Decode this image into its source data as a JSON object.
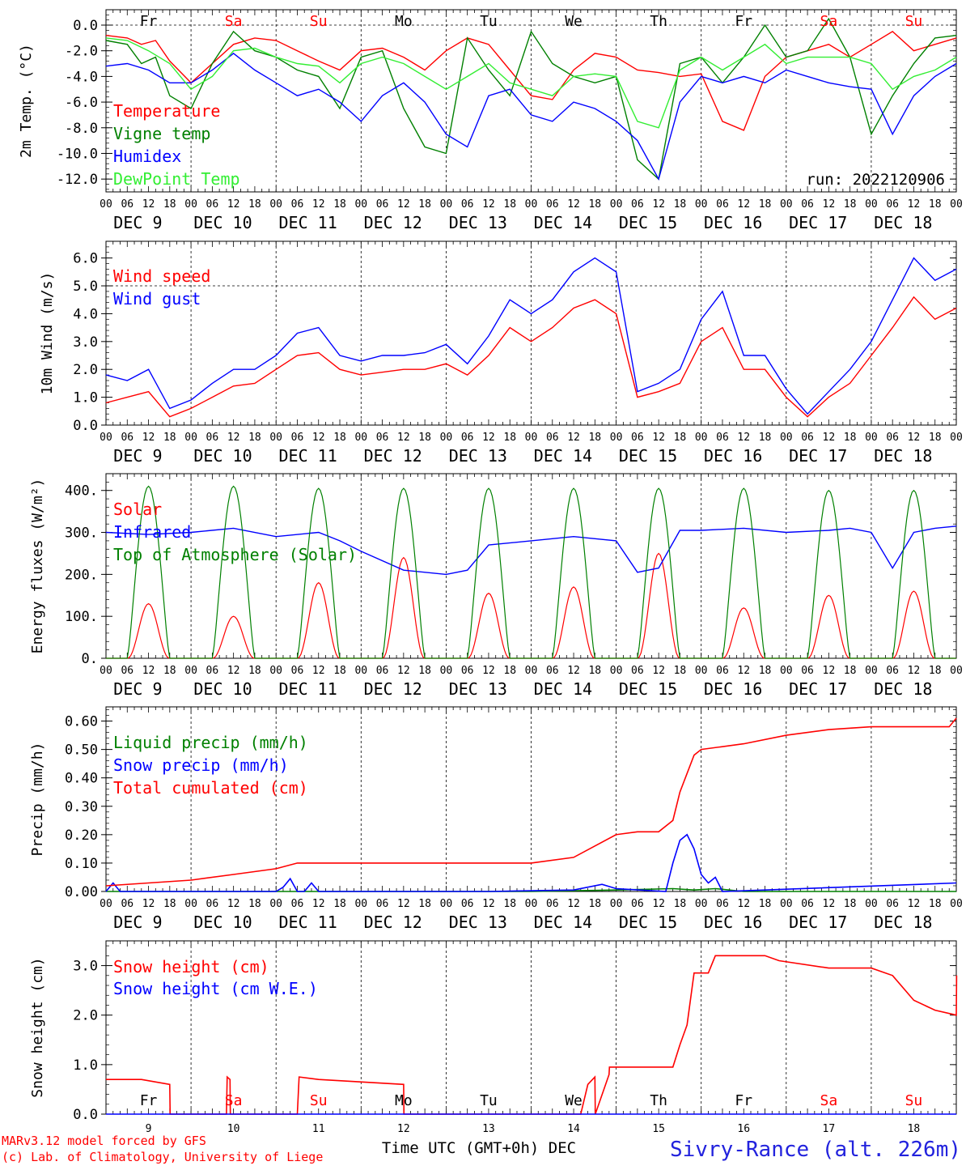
{
  "days": [
    "DEC  9",
    "DEC 10",
    "DEC 11",
    "DEC 12",
    "DEC 13",
    "DEC 14",
    "DEC 15",
    "DEC 16",
    "DEC 17",
    "DEC 18"
  ],
  "day_numbers": [
    "9",
    "10",
    "11",
    "12",
    "13",
    "14",
    "15",
    "16",
    "17",
    "18"
  ],
  "weekdays": [
    "Fr",
    "Sa",
    "Su",
    "Mo",
    "Tu",
    "We",
    "Th",
    "Fr",
    "Sa",
    "Su"
  ],
  "weekend_flags": [
    false,
    true,
    true,
    false,
    false,
    false,
    false,
    false,
    true,
    true
  ],
  "hour_labels": [
    "00",
    "06",
    "12",
    "18"
  ],
  "colors": {
    "red": "#ff0000",
    "green": "#008000",
    "blue": "#0000ff",
    "lightgreen": "#33ee33",
    "weekday": "#000000",
    "weekend": "#ff0000",
    "title": "#2222dd"
  },
  "footer": {
    "model": "MARv3.12 model forced by GFS",
    "credit": "(c) Lab. of Climatology, University of Liege",
    "xlabel": "Time UTC (GMT+0h) DEC",
    "station": "Sivry-Rance (alt. 226m)"
  },
  "chart_data": [
    {
      "type": "line",
      "ylabel": "2m Temp. (°C)",
      "ylim": [
        -13.0,
        1.2
      ],
      "yticks": [
        0.0,
        -2.0,
        -4.0,
        -6.0,
        -8.0,
        -10.0,
        -12.0
      ],
      "ytick_labels": [
        "0.0",
        "-2.0",
        "-4.0",
        "-6.0",
        "-8.0",
        "-10.0",
        "-12.0"
      ],
      "dashed_refs": [
        0.0
      ],
      "annotation": "run: 2022120906",
      "series": [
        {
          "name": "Temperature",
          "color": "red",
          "x": [
            0,
            6,
            10,
            14,
            18,
            24,
            30,
            36,
            42,
            48,
            54,
            60,
            66,
            72,
            78,
            84,
            90,
            96,
            102,
            108,
            114,
            120,
            126,
            132,
            138,
            144,
            150,
            156,
            162,
            168,
            174,
            180,
            186,
            192,
            198,
            204,
            210,
            216,
            222,
            228,
            234,
            240
          ],
          "y": [
            -0.8,
            -1.0,
            -1.5,
            -1.2,
            -2.8,
            -4.5,
            -3.0,
            -1.5,
            -1.0,
            -1.2,
            -2.0,
            -2.8,
            -3.5,
            -2.0,
            -1.8,
            -2.5,
            -3.5,
            -2.0,
            -1.0,
            -1.5,
            -3.5,
            -5.5,
            -5.8,
            -3.5,
            -2.2,
            -2.5,
            -3.5,
            -3.7,
            -4.0,
            -3.8,
            -7.5,
            -8.2,
            -4.0,
            -2.5,
            -2.0,
            -1.5,
            -2.5,
            -1.5,
            -0.5,
            -2.0,
            -1.5,
            -1.0
          ]
        },
        {
          "name": "Vigne temp",
          "color": "green",
          "x": [
            0,
            6,
            10,
            14,
            18,
            24,
            30,
            36,
            42,
            48,
            54,
            60,
            66,
            72,
            78,
            84,
            90,
            96,
            102,
            108,
            114,
            120,
            126,
            132,
            138,
            144,
            150,
            156,
            162,
            168,
            174,
            180,
            186,
            192,
            198,
            204,
            210,
            216,
            222,
            228,
            234,
            240
          ],
          "y": [
            -1.2,
            -1.5,
            -3.0,
            -2.5,
            -5.5,
            -6.5,
            -3.0,
            -0.5,
            -2.0,
            -2.5,
            -3.5,
            -4.0,
            -6.5,
            -2.5,
            -2.0,
            -6.5,
            -9.5,
            -10.0,
            -1.0,
            -3.5,
            -5.5,
            -0.5,
            -3.0,
            -4.0,
            -4.5,
            -4.0,
            -10.5,
            -12.0,
            -3.0,
            -2.5,
            -4.5,
            -2.5,
            0.0,
            -2.5,
            -2.0,
            0.5,
            -2.5,
            -8.5,
            -5.5,
            -3.0,
            -1.0,
            -0.8
          ]
        },
        {
          "name": "Humidex",
          "color": "blue",
          "x": [
            0,
            6,
            12,
            18,
            24,
            30,
            36,
            42,
            48,
            54,
            60,
            66,
            72,
            78,
            84,
            90,
            96,
            102,
            108,
            114,
            120,
            126,
            132,
            138,
            144,
            150,
            156,
            162,
            168,
            174,
            180,
            186,
            192,
            198,
            204,
            210,
            216,
            222,
            228,
            234,
            240
          ],
          "y": [
            -3.2,
            -3.0,
            -3.5,
            -4.5,
            -4.5,
            -3.5,
            -2.2,
            -3.5,
            -4.5,
            -5.5,
            -5.0,
            -6.0,
            -7.5,
            -5.5,
            -4.5,
            -6.0,
            -8.5,
            -9.5,
            -5.5,
            -5.0,
            -7.0,
            -7.5,
            -6.0,
            -6.5,
            -7.5,
            -9.0,
            -12.0,
            -6.0,
            -4.0,
            -4.5,
            -4.0,
            -4.5,
            -3.5,
            -4.0,
            -4.5,
            -4.8,
            -5.0,
            -8.5,
            -5.5,
            -4.0,
            -3.0
          ]
        },
        {
          "name": "DewPoint Temp",
          "color": "lightgreen",
          "x": [
            0,
            6,
            12,
            18,
            24,
            30,
            36,
            42,
            48,
            54,
            60,
            66,
            72,
            78,
            84,
            90,
            96,
            102,
            108,
            114,
            120,
            126,
            132,
            138,
            144,
            150,
            156,
            162,
            168,
            174,
            180,
            186,
            192,
            198,
            204,
            210,
            216,
            222,
            228,
            234,
            240
          ],
          "y": [
            -1.0,
            -1.2,
            -2.0,
            -3.0,
            -5.0,
            -4.0,
            -2.0,
            -1.8,
            -2.5,
            -3.0,
            -3.2,
            -4.5,
            -3.0,
            -2.5,
            -3.0,
            -4.0,
            -5.0,
            -4.0,
            -3.0,
            -4.5,
            -5.0,
            -5.5,
            -4.0,
            -3.8,
            -4.0,
            -7.5,
            -8.0,
            -3.5,
            -2.5,
            -3.5,
            -2.5,
            -1.5,
            -3.0,
            -2.5,
            -2.5,
            -2.5,
            -3.0,
            -5.0,
            -4.0,
            -3.5,
            -2.5
          ]
        }
      ]
    },
    {
      "type": "line",
      "ylabel": "10m Wind (m/s)",
      "ylim": [
        0.0,
        6.6
      ],
      "yticks": [
        0.0,
        1.0,
        2.0,
        3.0,
        4.0,
        5.0,
        6.0
      ],
      "ytick_labels": [
        "0.0",
        "1.0",
        "2.0",
        "3.0",
        "4.0",
        "5.0",
        "6.0"
      ],
      "dashed_refs": [
        5.0
      ],
      "series": [
        {
          "name": "Wind speed",
          "color": "red",
          "x": [
            0,
            6,
            12,
            18,
            24,
            30,
            36,
            42,
            48,
            54,
            60,
            66,
            72,
            78,
            84,
            90,
            96,
            102,
            108,
            114,
            120,
            126,
            132,
            138,
            144,
            150,
            156,
            162,
            168,
            174,
            180,
            186,
            192,
            198,
            204,
            210,
            216,
            222,
            228,
            234,
            240
          ],
          "y": [
            0.8,
            1.0,
            1.2,
            0.3,
            0.6,
            1.0,
            1.4,
            1.5,
            2.0,
            2.5,
            2.6,
            2.0,
            1.8,
            1.9,
            2.0,
            2.0,
            2.2,
            1.8,
            2.5,
            3.5,
            3.0,
            3.5,
            4.2,
            4.5,
            4.0,
            1.0,
            1.2,
            1.5,
            3.0,
            3.5,
            2.0,
            2.0,
            1.0,
            0.3,
            1.0,
            1.5,
            2.5,
            3.5,
            4.6,
            3.8,
            4.2
          ]
        },
        {
          "name": "Wind gust",
          "color": "blue",
          "x": [
            0,
            6,
            12,
            18,
            24,
            30,
            36,
            42,
            48,
            54,
            60,
            66,
            72,
            78,
            84,
            90,
            96,
            102,
            108,
            114,
            120,
            126,
            132,
            138,
            144,
            150,
            156,
            162,
            168,
            174,
            180,
            186,
            192,
            198,
            204,
            210,
            216,
            222,
            228,
            234,
            240
          ],
          "y": [
            1.8,
            1.6,
            2.0,
            0.6,
            0.9,
            1.5,
            2.0,
            2.0,
            2.5,
            3.3,
            3.5,
            2.5,
            2.3,
            2.5,
            2.5,
            2.6,
            2.9,
            2.2,
            3.2,
            4.5,
            4.0,
            4.5,
            5.5,
            6.0,
            5.5,
            1.2,
            1.5,
            2.0,
            3.8,
            4.8,
            2.5,
            2.5,
            1.3,
            0.4,
            1.2,
            2.0,
            3.0,
            4.5,
            6.0,
            5.2,
            5.6
          ]
        }
      ]
    },
    {
      "type": "line",
      "ylabel": "Energy fluxes (W/m²)",
      "ylim": [
        0,
        440
      ],
      "yticks": [
        0,
        100,
        200,
        300,
        400
      ],
      "ytick_labels": [
        "0.",
        "100.",
        "200.",
        "300.",
        "400."
      ],
      "dashed_refs": [],
      "series": [
        {
          "name": "Solar",
          "color": "red",
          "daily_peak_values": [
            130,
            100,
            180,
            240,
            155,
            170,
            250,
            120,
            150,
            160
          ]
        },
        {
          "name": "Infrared",
          "color": "blue",
          "x": [
            0,
            12,
            24,
            36,
            48,
            60,
            66,
            72,
            84,
            96,
            102,
            108,
            120,
            132,
            144,
            150,
            156,
            162,
            168,
            180,
            192,
            204,
            210,
            216,
            222,
            228,
            234,
            240
          ],
          "y": [
            300,
            295,
            300,
            310,
            290,
            300,
            280,
            255,
            210,
            200,
            210,
            270,
            280,
            290,
            280,
            205,
            215,
            305,
            305,
            310,
            300,
            305,
            310,
            300,
            215,
            300,
            310,
            315
          ]
        },
        {
          "name": "Top of Atmosphere (Solar)",
          "color": "green",
          "daily_peak_values": [
            410,
            410,
            405,
            405,
            405,
            405,
            405,
            405,
            400,
            400
          ]
        }
      ]
    },
    {
      "type": "line",
      "ylabel": "Precip (mm/h)",
      "ylim": [
        0.0,
        0.65
      ],
      "yticks": [
        0.0,
        0.1,
        0.2,
        0.3,
        0.4,
        0.5,
        0.6
      ],
      "ytick_labels": [
        "0.00",
        "0.10",
        "0.20",
        "0.30",
        "0.40",
        "0.50",
        "0.60"
      ],
      "dashed_refs": [],
      "series": [
        {
          "name": "Liquid precip (mm/h)",
          "color": "green",
          "x": [
            0,
            120,
            144,
            160,
            166,
            172,
            180,
            240
          ],
          "y": [
            0,
            0,
            0.005,
            0.01,
            0.005,
            0.01,
            0,
            0
          ]
        },
        {
          "name": "Snow precip (mm/h)",
          "color": "blue",
          "x": [
            0,
            2,
            4,
            48,
            50,
            52,
            54,
            56,
            58,
            60,
            108,
            132,
            140,
            144,
            158,
            160,
            162,
            164,
            166,
            168,
            170,
            172,
            174,
            186,
            240
          ],
          "y": [
            0,
            0.03,
            0,
            0,
            0.015,
            0.045,
            0,
            0,
            0.03,
            0,
            0,
            0.005,
            0.025,
            0.01,
            0,
            0.1,
            0.18,
            0.2,
            0.15,
            0.06,
            0.03,
            0.05,
            0,
            0.005,
            0.03
          ]
        },
        {
          "name": "Total cumulated (cm)",
          "color": "red",
          "x": [
            0,
            12,
            24,
            36,
            48,
            54,
            60,
            72,
            96,
            120,
            132,
            144,
            150,
            156,
            160,
            162,
            166,
            168,
            180,
            192,
            204,
            216,
            228,
            238,
            240
          ],
          "y": [
            0.02,
            0.03,
            0.04,
            0.06,
            0.08,
            0.1,
            0.1,
            0.1,
            0.1,
            0.1,
            0.12,
            0.2,
            0.21,
            0.21,
            0.25,
            0.35,
            0.48,
            0.5,
            0.52,
            0.55,
            0.57,
            0.58,
            0.58,
            0.58,
            0.61
          ]
        }
      ]
    },
    {
      "type": "line",
      "ylabel": "Snow height (cm)",
      "ylim": [
        0.0,
        3.5
      ],
      "yticks": [
        0.0,
        1.0,
        2.0,
        3.0
      ],
      "ytick_labels": [
        "0.0",
        "1.0",
        "2.0",
        "3.0"
      ],
      "dashed_refs": [],
      "series": [
        {
          "name": "Snow height (cm)",
          "color": "red",
          "x": [
            0,
            10,
            18,
            18.1,
            34,
            34.2,
            35,
            35.1,
            54,
            54.5,
            60,
            84,
            84.1,
            134,
            136,
            138,
            138.1,
            142,
            142.1,
            144,
            144.1,
            160,
            162,
            164,
            166,
            170,
            172,
            174,
            186,
            190,
            204,
            216,
            222,
            228,
            234,
            240,
            240.1
          ],
          "y": [
            0.7,
            0.7,
            0.6,
            0,
            0,
            0.75,
            0.7,
            0,
            0,
            0.75,
            0.7,
            0.6,
            0,
            0,
            0.6,
            0.75,
            0,
            0.8,
            0.95,
            0.95,
            0.95,
            0.95,
            1.4,
            1.8,
            2.85,
            2.85,
            3.2,
            3.2,
            3.2,
            3.1,
            2.95,
            2.95,
            2.8,
            2.3,
            2.1,
            2.0,
            2.8
          ]
        },
        {
          "name": "Snow height (cm W.E.)",
          "color": "blue",
          "x": [
            0,
            240
          ],
          "y": [
            0,
            0
          ]
        }
      ]
    }
  ]
}
